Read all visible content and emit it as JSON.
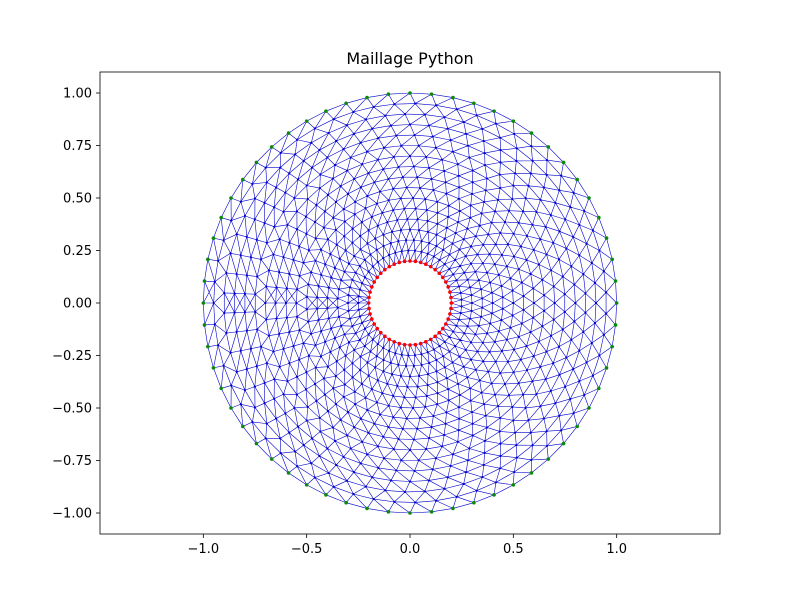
{
  "chart_data": {
    "type": "scatter",
    "title": "Maillage Python",
    "xlabel": "",
    "ylabel": "",
    "xlim": [
      -1.5,
      1.5
    ],
    "ylim": [
      -1.1,
      1.1
    ],
    "xticks": [
      -1.0,
      -0.5,
      0.0,
      0.5,
      1.0
    ],
    "xtick_labels": [
      "−1.0",
      "−0.5",
      "0.0",
      "0.5",
      "1.0"
    ],
    "yticks": [
      1.0,
      0.75,
      0.5,
      0.25,
      0.0,
      -0.25,
      -0.5,
      -0.75,
      -1.0
    ],
    "ytick_labels": [
      "1.00",
      "0.75",
      "0.50",
      "0.25",
      "0.00",
      "−0.25",
      "−0.50",
      "−0.75",
      "−1.00"
    ],
    "grid": false,
    "mesh": {
      "inner_radius": 0.2,
      "outer_radius": 1.0,
      "center": [
        0.0,
        0.0
      ],
      "rings": 16,
      "edge_color": "#0000cc",
      "node_color": "#0000cc",
      "outer_boundary_color": "#0a8a0a",
      "inner_boundary_color": "#ff0000"
    },
    "series": [
      {
        "points": "outer boundary nodes (r = 1.0)",
        "count": 60,
        "color": "#0a8a0a"
      },
      {
        "points": "inner boundary nodes (r = 0.2)",
        "count": 48,
        "color": "#ff0000"
      },
      {
        "points": "interior nodes",
        "color": "#0000cc"
      }
    ]
  }
}
